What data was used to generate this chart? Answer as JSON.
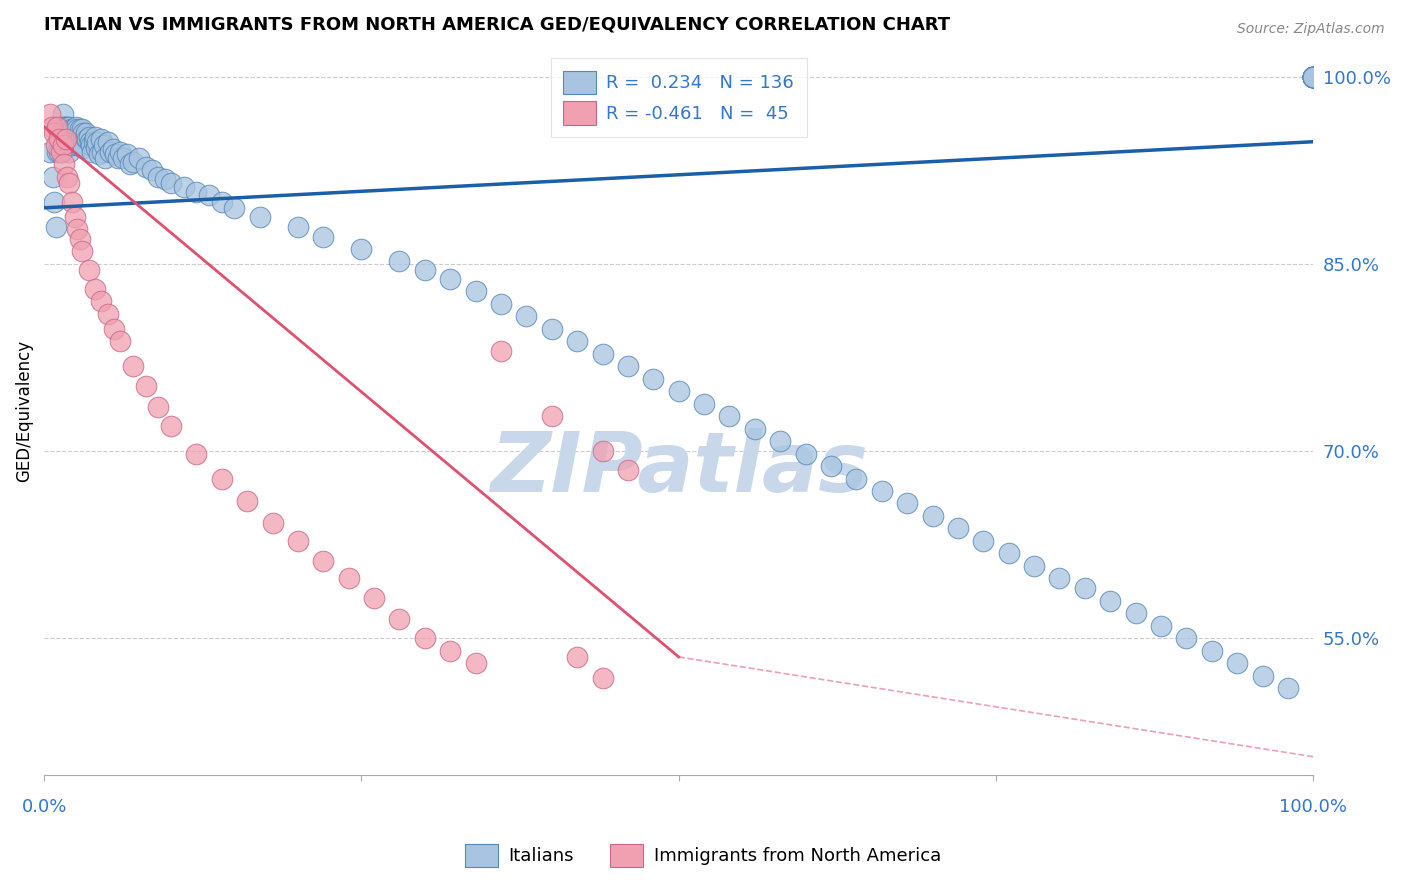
{
  "title": "ITALIAN VS IMMIGRANTS FROM NORTH AMERICA GED/EQUIVALENCY CORRELATION CHART",
  "source": "Source: ZipAtlas.com",
  "ylabel": "GED/Equivalency",
  "ytick_values": [
    0.55,
    0.7,
    0.85,
    1.0
  ],
  "legend_blue_r": "0.234",
  "legend_blue_n": "136",
  "legend_pink_r": "-0.461",
  "legend_pink_n": "45",
  "blue_scatter_color": "#a8c4e0",
  "blue_edge_color": "#5588bb",
  "pink_scatter_color": "#f0a0b0",
  "pink_edge_color": "#cc6688",
  "blue_trend_color": "#1a5fa8",
  "pink_trend_color": "#e05070",
  "grid_color": "#cccccc",
  "axis_label_color": "#3377cc",
  "watermark_color": "#c8d8ea",
  "blue_scatter_x": [
    0.005,
    0.007,
    0.008,
    0.009,
    0.01,
    0.01,
    0.011,
    0.012,
    0.012,
    0.013,
    0.013,
    0.014,
    0.015,
    0.015,
    0.015,
    0.016,
    0.016,
    0.017,
    0.017,
    0.018,
    0.018,
    0.019,
    0.02,
    0.02,
    0.02,
    0.021,
    0.021,
    0.022,
    0.022,
    0.023,
    0.023,
    0.024,
    0.025,
    0.025,
    0.026,
    0.026,
    0.027,
    0.028,
    0.028,
    0.029,
    0.03,
    0.03,
    0.031,
    0.031,
    0.032,
    0.033,
    0.034,
    0.035,
    0.036,
    0.037,
    0.038,
    0.039,
    0.04,
    0.041,
    0.042,
    0.043,
    0.045,
    0.046,
    0.047,
    0.048,
    0.05,
    0.052,
    0.054,
    0.056,
    0.058,
    0.06,
    0.062,
    0.065,
    0.068,
    0.07,
    0.075,
    0.08,
    0.085,
    0.09,
    0.095,
    0.1,
    0.11,
    0.12,
    0.13,
    0.14,
    0.15,
    0.17,
    0.2,
    0.22,
    0.25,
    0.28,
    0.3,
    0.32,
    0.34,
    0.36,
    0.38,
    0.4,
    0.42,
    0.44,
    0.46,
    0.48,
    0.5,
    0.52,
    0.54,
    0.56,
    0.58,
    0.6,
    0.62,
    0.64,
    0.66,
    0.68,
    0.7,
    0.72,
    0.74,
    0.76,
    0.78,
    0.8,
    0.82,
    0.84,
    0.86,
    0.88,
    0.9,
    0.92,
    0.94,
    0.96,
    0.98,
    1.0,
    1.0,
    1.0,
    1.0,
    1.0,
    1.0,
    1.0,
    1.0,
    1.0,
    1.0,
    1.0,
    1.0,
    1.0,
    1.0,
    1.0
  ],
  "blue_scatter_y": [
    0.94,
    0.92,
    0.9,
    0.88,
    0.96,
    0.94,
    0.96,
    0.95,
    0.94,
    0.96,
    0.95,
    0.94,
    0.97,
    0.96,
    0.95,
    0.96,
    0.95,
    0.96,
    0.95,
    0.96,
    0.955,
    0.945,
    0.96,
    0.95,
    0.94,
    0.958,
    0.948,
    0.955,
    0.945,
    0.958,
    0.948,
    0.952,
    0.96,
    0.948,
    0.958,
    0.945,
    0.952,
    0.958,
    0.945,
    0.952,
    0.958,
    0.945,
    0.955,
    0.943,
    0.952,
    0.955,
    0.95,
    0.952,
    0.948,
    0.945,
    0.94,
    0.948,
    0.952,
    0.943,
    0.948,
    0.938,
    0.95,
    0.94,
    0.945,
    0.935,
    0.948,
    0.94,
    0.942,
    0.938,
    0.935,
    0.94,
    0.935,
    0.938,
    0.93,
    0.932,
    0.935,
    0.928,
    0.925,
    0.92,
    0.918,
    0.915,
    0.912,
    0.908,
    0.905,
    0.9,
    0.895,
    0.888,
    0.88,
    0.872,
    0.862,
    0.852,
    0.845,
    0.838,
    0.828,
    0.818,
    0.808,
    0.798,
    0.788,
    0.778,
    0.768,
    0.758,
    0.748,
    0.738,
    0.728,
    0.718,
    0.708,
    0.698,
    0.688,
    0.678,
    0.668,
    0.658,
    0.648,
    0.638,
    0.628,
    0.618,
    0.608,
    0.598,
    0.59,
    0.58,
    0.57,
    0.56,
    0.55,
    0.54,
    0.53,
    0.52,
    0.51,
    1.0,
    1.0,
    1.0,
    1.0,
    1.0,
    1.0,
    1.0,
    1.0,
    1.0,
    1.0,
    1.0,
    1.0,
    1.0,
    1.0,
    1.0
  ],
  "pink_scatter_x": [
    0.005,
    0.006,
    0.008,
    0.009,
    0.01,
    0.012,
    0.013,
    0.015,
    0.016,
    0.017,
    0.018,
    0.02,
    0.022,
    0.024,
    0.026,
    0.028,
    0.03,
    0.035,
    0.04,
    0.045,
    0.05,
    0.055,
    0.06,
    0.07,
    0.08,
    0.09,
    0.1,
    0.12,
    0.14,
    0.16,
    0.18,
    0.2,
    0.22,
    0.24,
    0.26,
    0.28,
    0.3,
    0.32,
    0.34,
    0.36,
    0.4,
    0.42,
    0.44,
    0.44,
    0.46
  ],
  "pink_scatter_y": [
    0.97,
    0.96,
    0.955,
    0.945,
    0.96,
    0.95,
    0.94,
    0.945,
    0.93,
    0.95,
    0.92,
    0.915,
    0.9,
    0.888,
    0.878,
    0.87,
    0.86,
    0.845,
    0.83,
    0.82,
    0.81,
    0.798,
    0.788,
    0.768,
    0.752,
    0.735,
    0.72,
    0.698,
    0.678,
    0.66,
    0.642,
    0.628,
    0.612,
    0.598,
    0.582,
    0.565,
    0.55,
    0.54,
    0.53,
    0.78,
    0.728,
    0.535,
    0.518,
    0.7,
    0.685
  ],
  "blue_trend_y0": 0.895,
  "blue_trend_y1": 0.948,
  "pink_trend_y0": 0.96,
  "pink_trend_y1_solid_at_x": 0.5,
  "pink_trend_y1": 0.535,
  "pink_trend_y1_end": 0.455,
  "xlim": [
    0.0,
    1.0
  ],
  "ylim_min": 0.44,
  "ylim_max": 1.025
}
